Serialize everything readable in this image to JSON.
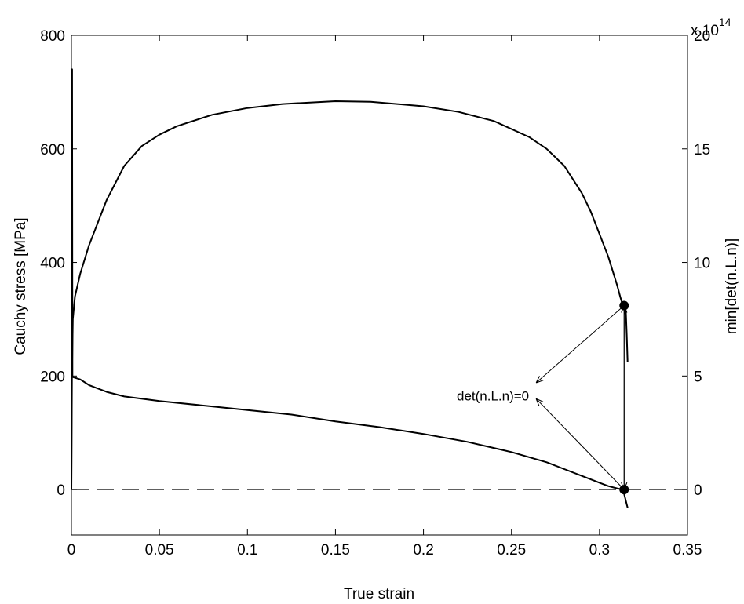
{
  "chart_data": {
    "type": "line",
    "xlabel": "True strain",
    "ylabel": "Cauchy stress [MPa]",
    "ylabel_right": "min[det(n.L.n)]",
    "xlim": [
      0,
      0.35
    ],
    "ylim": [
      -80,
      800
    ],
    "ylim_right": [
      -2,
      20
    ],
    "x_ticks": [
      "0",
      "0.05",
      "0.1",
      "0.15",
      "0.2",
      "0.25",
      "0.3",
      "0.35"
    ],
    "y_ticks": [
      "0",
      "200",
      "400",
      "600",
      "800"
    ],
    "y_right_ticks": [
      "0",
      "5",
      "10",
      "15",
      "20"
    ],
    "y_right_multiplier": {
      "prefix": "x 10",
      "exponent": "14"
    },
    "grid": false,
    "series": [
      {
        "axis": "left",
        "x": [
          0,
          0.0003,
          0.0008,
          0.002,
          0.005,
          0.01,
          0.02,
          0.03,
          0.04,
          0.05,
          0.06,
          0.08,
          0.1,
          0.12,
          0.15,
          0.17,
          0.2,
          0.22,
          0.24,
          0.26,
          0.27,
          0.28,
          0.29,
          0.295,
          0.3,
          0.305,
          0.31,
          0.312,
          0.314,
          0.315
        ],
        "values": [
          0,
          200,
          300,
          340,
          380,
          430,
          510,
          570,
          605,
          625,
          640,
          660,
          672,
          679,
          684,
          683,
          675,
          665,
          649,
          621,
          600,
          570,
          522,
          490,
          450,
          410,
          360,
          337,
          317,
          305
        ]
      },
      {
        "axis": "right",
        "x": [
          0,
          0.0004,
          0.0006,
          0.001,
          0.005,
          0.01,
          0.02,
          0.03,
          0.05,
          0.075,
          0.1,
          0.125,
          0.15,
          0.175,
          0.2,
          0.225,
          0.25,
          0.27,
          0.28,
          0.29,
          0.3,
          0.305,
          0.31,
          0.313,
          0.314,
          0.315,
          0.316
        ],
        "values": [
          0,
          18.5,
          5.0,
          4.95,
          4.85,
          4.6,
          4.3,
          4.1,
          3.9,
          3.7,
          3.5,
          3.3,
          3.0,
          2.75,
          2.45,
          2.1,
          1.65,
          1.2,
          0.9,
          0.6,
          0.3,
          0.15,
          0.05,
          0.0,
          -0.2,
          -0.5,
          -0.8
        ]
      },
      {
        "axis": "right",
        "x": [
          0.3145,
          0.315,
          0.3155,
          0.316
        ],
        "values": [
          8.1,
          7.8,
          6.8,
          5.6
        ]
      },
      {
        "axis": "left",
        "x": [
          0,
          0.35
        ],
        "values": [
          0,
          0
        ],
        "style": "dashed"
      }
    ],
    "markers": [
      {
        "x": 0.314,
        "y": 324,
        "axis": "left"
      },
      {
        "x": 0.314,
        "y": 0,
        "axis": "left"
      }
    ],
    "annotations": [
      {
        "text": "det(n.L.n)=0",
        "x": 0.26,
        "y": 165
      }
    ],
    "arrows": [
      {
        "from": [
          0.314,
          324
        ],
        "to": [
          0.264,
          188
        ]
      },
      {
        "from": [
          0.314,
          0
        ],
        "to": [
          0.264,
          160
        ]
      },
      {
        "from": [
          0.314,
          0
        ],
        "to": [
          0.314,
          324
        ]
      },
      {
        "from": [
          0.314,
          324
        ],
        "to": [
          0.314,
          0
        ]
      }
    ]
  }
}
